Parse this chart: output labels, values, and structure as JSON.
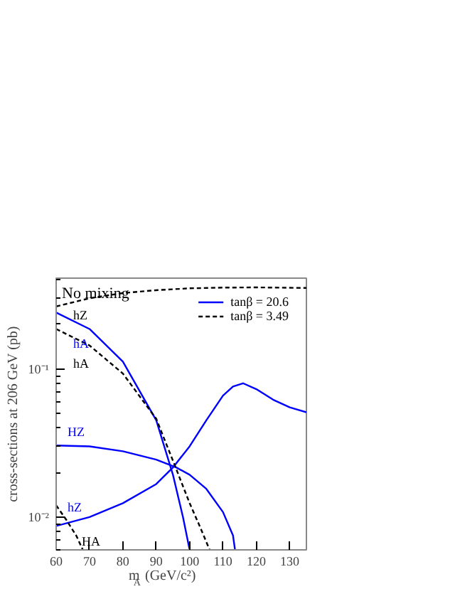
{
  "chart_data": {
    "type": "line",
    "xlabel": "m$_{A}$ (GeV/c²)",
    "ylabel": "cross-sections at 206 GeV (pb)",
    "log": "y",
    "xlim": [
      60,
      135
    ],
    "ylim": [
      0.006,
      0.41
    ],
    "xticks": [
      60,
      70,
      80,
      90,
      100,
      110,
      120,
      130
    ],
    "yticks": [
      {
        "value": 0.01,
        "label": "10⁻²"
      },
      {
        "value": 0.1,
        "label": "10⁻¹"
      }
    ],
    "grid": false,
    "legend": "top right",
    "series": [
      {
        "name": "tanβ = 20.6",
        "color": "#0000ff",
        "line_style": "solid",
        "x": [
          60,
          70,
          80,
          90,
          95,
          98,
          100
        ],
        "values": [
          0.24,
          0.186,
          0.112,
          0.045,
          0.0193,
          0.01,
          0.006
        ]
      },
      {
        "color": "#0000ff",
        "line_style": "solid",
        "x": [
          60,
          70,
          80,
          90,
          96,
          100,
          105,
          110,
          113,
          113.6
        ],
        "values": [
          0.0304,
          0.03,
          0.0278,
          0.0244,
          0.0216,
          0.0193,
          0.0155,
          0.0108,
          0.0075,
          0.006
        ]
      },
      {
        "color": "#0000ff",
        "line_style": "solid",
        "x": [
          60,
          70,
          80,
          90,
          95,
          100,
          105,
          110,
          113,
          116,
          120,
          125,
          130,
          135
        ],
        "values": [
          0.0087,
          0.01,
          0.0124,
          0.0167,
          0.0216,
          0.03,
          0.045,
          0.066,
          0.076,
          0.08,
          0.073,
          0.062,
          0.055,
          0.051
        ]
      },
      {
        "name": "tanβ = 3.49",
        "color": "#000000",
        "line_style": "dashed",
        "x": [
          60,
          70,
          80,
          90,
          100,
          110,
          120,
          135
        ],
        "values": [
          0.264,
          0.3,
          0.325,
          0.34,
          0.35,
          0.354,
          0.355,
          0.352
        ]
      },
      {
        "color": "#000000",
        "line_style": "dashed",
        "x": [
          60,
          70,
          80,
          90,
          95,
          100,
          103,
          106
        ],
        "values": [
          0.186,
          0.144,
          0.093,
          0.046,
          0.024,
          0.0124,
          0.0087,
          0.006
        ]
      },
      {
        "color": "#000000",
        "line_style": "dashed",
        "x": [
          60,
          63,
          66,
          68
        ],
        "values": [
          0.012,
          0.0096,
          0.0075,
          0.006
        ]
      }
    ],
    "annotations": [
      "No mixing",
      "hZ",
      "hA",
      "hA",
      "HZ",
      "hZ",
      "HA"
    ]
  }
}
